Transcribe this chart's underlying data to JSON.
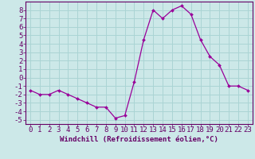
{
  "x": [
    0,
    1,
    2,
    3,
    4,
    5,
    6,
    7,
    8,
    9,
    10,
    11,
    12,
    13,
    14,
    15,
    16,
    17,
    18,
    19,
    20,
    21,
    22,
    23
  ],
  "y": [
    -1.5,
    -2.0,
    -2.0,
    -1.5,
    -2.0,
    -2.5,
    -3.0,
    -3.5,
    -3.5,
    -4.8,
    -4.5,
    -0.5,
    4.5,
    8.0,
    7.0,
    8.0,
    8.5,
    7.5,
    4.5,
    2.5,
    1.5,
    -1.0,
    -1.0,
    -1.5
  ],
  "line_color": "#990099",
  "marker_color": "#990099",
  "bg_color": "#cce8e8",
  "grid_color": "#aad4d4",
  "axis_label_color": "#660066",
  "tick_color": "#660066",
  "xlabel": "Windchill (Refroidissement éolien,°C)",
  "ylim": [
    -5.5,
    9.0
  ],
  "xlim": [
    -0.5,
    23.5
  ],
  "yticks": [
    -5,
    -4,
    -3,
    -2,
    -1,
    0,
    1,
    2,
    3,
    4,
    5,
    6,
    7,
    8
  ],
  "xticks": [
    0,
    1,
    2,
    3,
    4,
    5,
    6,
    7,
    8,
    9,
    10,
    11,
    12,
    13,
    14,
    15,
    16,
    17,
    18,
    19,
    20,
    21,
    22,
    23
  ],
  "tick_fontsize": 6.5,
  "xlabel_fontsize": 6.5
}
